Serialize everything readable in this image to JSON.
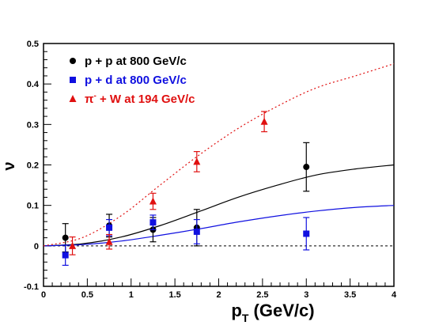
{
  "chart_data": {
    "type": "scatter",
    "title": "",
    "xlabel_main": "p",
    "xlabel_sub": "T",
    "xlabel_unit": " (GeV/c)",
    "ylabel": "ν",
    "xlim": [
      0,
      4
    ],
    "ylim": [
      -0.1,
      0.5
    ],
    "x_ticks": [
      "0",
      "0.5",
      "1",
      "1.5",
      "2",
      "2.5",
      "3",
      "3.5",
      "4"
    ],
    "y_ticks": [
      "-0.1",
      "0",
      "0.1",
      "0.2",
      "0.3",
      "0.4",
      "0.5"
    ],
    "legend_position": "top-left",
    "series": [
      {
        "label": "p + p at 800 GeV/c",
        "color": "#000000",
        "marker": "circle",
        "x": [
          0.25,
          0.75,
          1.25,
          1.75,
          3.0
        ],
        "y": [
          0.02,
          0.05,
          0.04,
          0.045,
          0.195
        ],
        "err": [
          0.035,
          0.028,
          0.03,
          0.045,
          0.06
        ],
        "fit": [
          0,
          0.005,
          0.022,
          0.05,
          0.085,
          0.12,
          0.15,
          0.175,
          0.19,
          0.2
        ]
      },
      {
        "label": "p + d at 800 GeV/c",
        "color": "#1010e0",
        "marker": "square",
        "x": [
          0.25,
          0.75,
          1.25,
          1.75,
          3.0
        ],
        "y": [
          -0.023,
          0.045,
          0.058,
          0.035,
          0.03
        ],
        "err": [
          0.025,
          0.02,
          0.018,
          0.03,
          0.04
        ],
        "fit": [
          0,
          0.003,
          0.012,
          0.026,
          0.042,
          0.059,
          0.074,
          0.086,
          0.095,
          0.1
        ]
      },
      {
        "label": "π⁻ + W at 194 GeV/c",
        "label_main": "π",
        "label_sup": "-",
        "label_rest": " + W at 194 GeV/c",
        "color": "#e01010",
        "marker": "triangle",
        "x": [
          0.33,
          0.75,
          1.25,
          1.75,
          2.52
        ],
        "y": [
          0.0,
          0.01,
          0.11,
          0.208,
          0.307
        ],
        "err": [
          0.022,
          0.018,
          0.02,
          0.025,
          0.025
        ],
        "fit": [
          0,
          0.02,
          0.075,
          0.15,
          0.225,
          0.29,
          0.345,
          0.39,
          0.42,
          0.45
        ]
      }
    ],
    "fit_x": [
      0,
      0.44,
      0.89,
      1.33,
      1.78,
      2.22,
      2.67,
      3.11,
      3.56,
      4.0
    ]
  }
}
